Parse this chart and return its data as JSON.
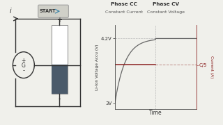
{
  "bg_color": "#f0f0eb",
  "start_btn_label": "START",
  "battery_plus_label": "+",
  "battery_minus_label": "-",
  "current_label": "i",
  "generator_plus": "+",
  "generator_minus": "-",
  "generator_label": "G",
  "phase_cc_label": "Phase CC",
  "phase_cc_sub": "Constant Current",
  "phase_cv_label": "Phase CV",
  "phase_cv_sub": "Constant Voltage",
  "ylabel_left": "Li-Ion Voltage Accu (V)",
  "ylabel_right": "Current (A)",
  "xlabel": "Time",
  "c5_label": "C/5",
  "voltage_color": "#666666",
  "current_color": "#8b2020",
  "grid_color": "#bbbbbb",
  "battery_bottom_color": "#4a5a6a",
  "circuit_color": "#333333",
  "btn_face": "#d0d0c8",
  "btn_edge": "#999999",
  "btn_arrow_color": "#4488aa"
}
